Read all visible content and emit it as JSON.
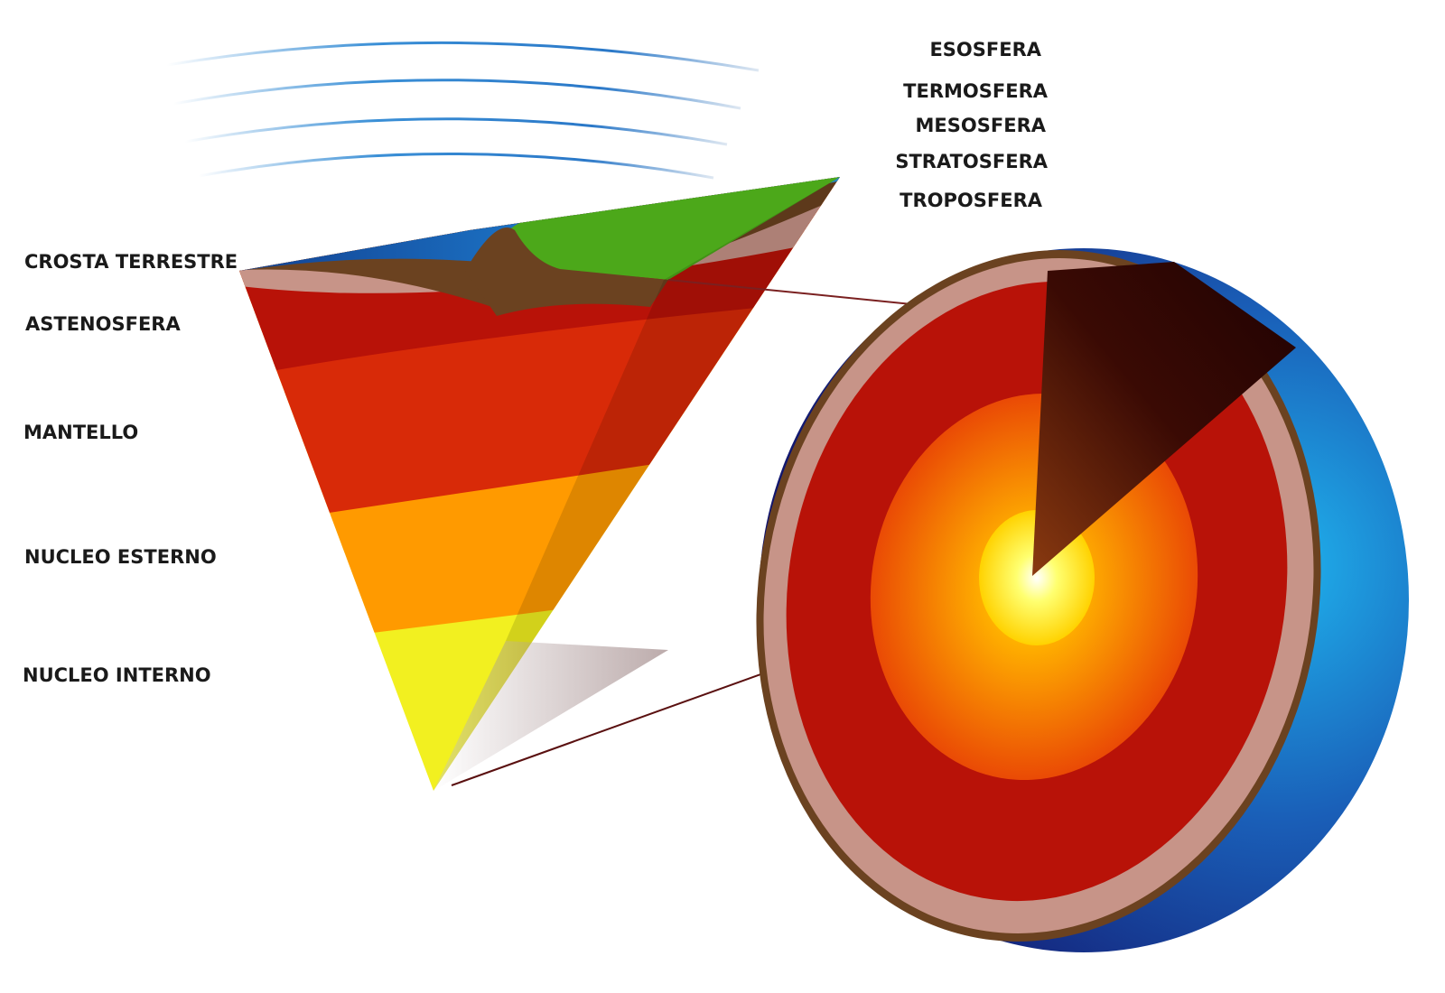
{
  "atmosphere_labels": [
    "ESOSFERA",
    "TERMOSFERA",
    "MESOSFERA",
    "STRATOSFERA",
    "TROPOSFERA"
  ],
  "interior_labels": [
    "CROSTA TERRESTRE",
    "ASTENOSFERA",
    "MANTELLO",
    "NUCLEO ESTERNO",
    "NUCLEO INTERNO"
  ]
}
